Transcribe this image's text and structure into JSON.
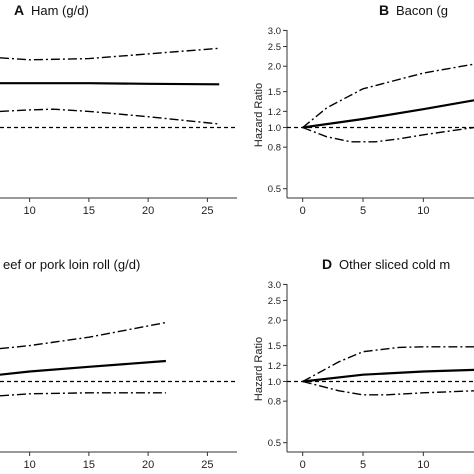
{
  "chart_data": [
    {
      "id": "A",
      "type": "line",
      "letter": "A",
      "title": "Ham (g/d)",
      "xlabel": "",
      "ylabel": "",
      "yscale": "log",
      "x_ticks": [
        10,
        15,
        20,
        25
      ],
      "y_ticks": [],
      "xlim": [
        7.5,
        27.5
      ],
      "ylim": [
        0.45,
        3.3
      ],
      "grid": false,
      "reference_line": 1.0,
      "series": [
        {
          "role": "estimate",
          "x": [
            7.5,
            10,
            15,
            20,
            26
          ],
          "y": [
            1.65,
            1.65,
            1.65,
            1.64,
            1.63
          ]
        },
        {
          "role": "upper",
          "x": [
            7.5,
            10,
            15,
            20,
            26
          ],
          "y": [
            2.2,
            2.15,
            2.18,
            2.3,
            2.45
          ]
        },
        {
          "role": "lower",
          "x": [
            7.5,
            10,
            12,
            15,
            20,
            26
          ],
          "y": [
            1.2,
            1.22,
            1.23,
            1.2,
            1.13,
            1.04
          ]
        }
      ]
    },
    {
      "id": "B",
      "type": "line",
      "letter": "B",
      "title": "Bacon (g",
      "xlabel": "",
      "ylabel": "Hazard Ratio",
      "yscale": "log",
      "x_ticks": [
        0,
        5,
        10
      ],
      "y_ticks": [
        0.5,
        0.8,
        1.0,
        1.2,
        1.5,
        2.0,
        2.5,
        3.0
      ],
      "y_tick_labels": [
        "0.5",
        "0.8",
        "1.0",
        "1.2",
        "1.5",
        "2.0",
        "2.5",
        "3.0"
      ],
      "xlim": [
        -1.3,
        14.2
      ],
      "ylim": [
        0.45,
        3.3
      ],
      "grid": false,
      "reference_line": 1.0,
      "series": [
        {
          "role": "estimate",
          "x": [
            0,
            5,
            10,
            14.2
          ],
          "y": [
            1.0,
            1.1,
            1.23,
            1.36
          ]
        },
        {
          "role": "upper",
          "x": [
            0,
            2,
            5,
            10,
            14.2
          ],
          "y": [
            1.0,
            1.25,
            1.55,
            1.85,
            2.05
          ]
        },
        {
          "role": "lower",
          "x": [
            0,
            2,
            4,
            6,
            8,
            10,
            14.2
          ],
          "y": [
            1.0,
            0.9,
            0.85,
            0.85,
            0.88,
            0.92,
            1.0
          ]
        }
      ]
    },
    {
      "id": "C",
      "type": "line",
      "letter": "",
      "title": "eef or pork loin roll (g/d)",
      "xlabel": "",
      "ylabel": "",
      "yscale": "log",
      "x_ticks": [
        10,
        15,
        20,
        25
      ],
      "y_ticks": [],
      "xlim": [
        7.5,
        27.5
      ],
      "ylim": [
        0.45,
        3.3
      ],
      "grid": false,
      "reference_line": 1.0,
      "series": [
        {
          "role": "estimate",
          "x": [
            7.5,
            10,
            15,
            21.5
          ],
          "y": [
            1.08,
            1.12,
            1.18,
            1.26
          ]
        },
        {
          "role": "upper",
          "x": [
            7.5,
            10,
            15,
            21.5
          ],
          "y": [
            1.45,
            1.5,
            1.65,
            1.95
          ]
        },
        {
          "role": "lower",
          "x": [
            7.5,
            10,
            15,
            21.5
          ],
          "y": [
            0.85,
            0.87,
            0.88,
            0.88
          ]
        }
      ]
    },
    {
      "id": "D",
      "type": "line",
      "letter": "D",
      "title": "Other sliced cold m",
      "xlabel": "",
      "ylabel": "Hazard Ratio",
      "yscale": "log",
      "x_ticks": [
        0,
        5,
        10
      ],
      "y_ticks": [
        0.5,
        0.8,
        1.0,
        1.2,
        1.5,
        2.0,
        2.5,
        3.0
      ],
      "y_tick_labels": [
        "0.5",
        "0.8",
        "1.0",
        "1.2",
        "1.5",
        "2.0",
        "2.5",
        "3.0"
      ],
      "xlim": [
        -1.3,
        14.2
      ],
      "ylim": [
        0.45,
        3.3
      ],
      "grid": false,
      "reference_line": 1.0,
      "series": [
        {
          "role": "estimate",
          "x": [
            0,
            5,
            10,
            14.2
          ],
          "y": [
            1.0,
            1.08,
            1.12,
            1.14
          ]
        },
        {
          "role": "upper",
          "x": [
            0,
            3,
            5,
            8,
            10,
            14.2
          ],
          "y": [
            1.0,
            1.25,
            1.4,
            1.47,
            1.48,
            1.48
          ]
        },
        {
          "role": "lower",
          "x": [
            0,
            3,
            5,
            7,
            10,
            14.2
          ],
          "y": [
            1.0,
            0.9,
            0.86,
            0.86,
            0.88,
            0.9
          ]
        }
      ]
    }
  ]
}
